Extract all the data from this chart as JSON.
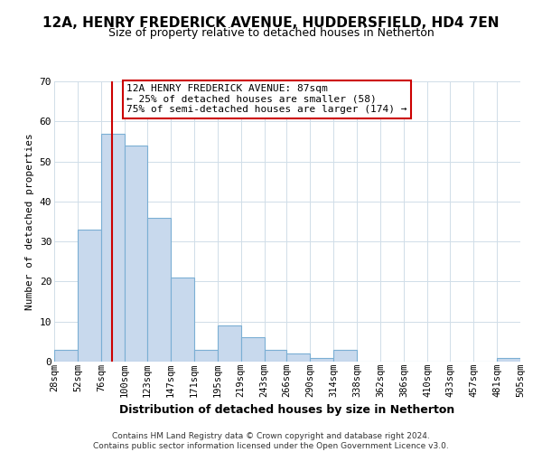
{
  "title": "12A, HENRY FREDERICK AVENUE, HUDDERSFIELD, HD4 7EN",
  "subtitle": "Size of property relative to detached houses in Netherton",
  "xlabel": "Distribution of detached houses by size in Netherton",
  "ylabel": "Number of detached properties",
  "bin_edges": [
    28,
    52,
    76,
    100,
    123,
    147,
    171,
    195,
    219,
    243,
    266,
    290,
    314,
    338,
    362,
    386,
    410,
    433,
    457,
    481,
    505
  ],
  "bar_heights": [
    3,
    33,
    57,
    54,
    36,
    21,
    3,
    9,
    6,
    3,
    2,
    1,
    3,
    0,
    0,
    0,
    0,
    0,
    0,
    1
  ],
  "bar_color": "#c8d9ed",
  "bar_edgecolor": "#7bafd4",
  "red_line_x": 87,
  "red_line_color": "#cc0000",
  "ylim": [
    0,
    70
  ],
  "yticks": [
    0,
    10,
    20,
    30,
    40,
    50,
    60,
    70
  ],
  "annotation_text": "12A HENRY FREDERICK AVENUE: 87sqm\n← 25% of detached houses are smaller (58)\n75% of semi-detached houses are larger (174) →",
  "annotation_box_edgecolor": "#cc0000",
  "footer_line1": "Contains HM Land Registry data © Crown copyright and database right 2024.",
  "footer_line2": "Contains public sector information licensed under the Open Government Licence v3.0.",
  "background_color": "#ffffff",
  "grid_color": "#d0dde8",
  "title_fontsize": 11,
  "subtitle_fontsize": 9,
  "xlabel_fontsize": 9,
  "ylabel_fontsize": 8,
  "tick_fontsize": 7.5,
  "annot_fontsize": 8,
  "footer_fontsize": 6.5
}
